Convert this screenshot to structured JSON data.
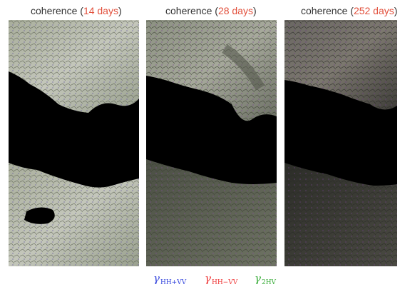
{
  "colors": {
    "title_text": "#333333",
    "days_text": "#e2503c",
    "water": "#000000",
    "legend_blue": "#3344dd",
    "legend_red": "#ee3333",
    "legend_green": "#33aa33"
  },
  "panels": [
    {
      "title_prefix": "coherence (",
      "days": "14 days",
      "title_suffix": ")",
      "brightness": "bright"
    },
    {
      "title_prefix": "coherence (",
      "days": "28 days",
      "title_suffix": ")",
      "brightness": "medium"
    },
    {
      "title_prefix": "coherence (",
      "days": "252 days",
      "title_suffix": ")",
      "brightness": "dark"
    }
  ],
  "legend": [
    {
      "symbol": "γ",
      "subscript": "HH+VV",
      "color": "blue"
    },
    {
      "symbol": "γ",
      "subscript": "HH−VV",
      "color": "red"
    },
    {
      "symbol": "γ",
      "subscript": "2HV",
      "color": "green"
    }
  ]
}
